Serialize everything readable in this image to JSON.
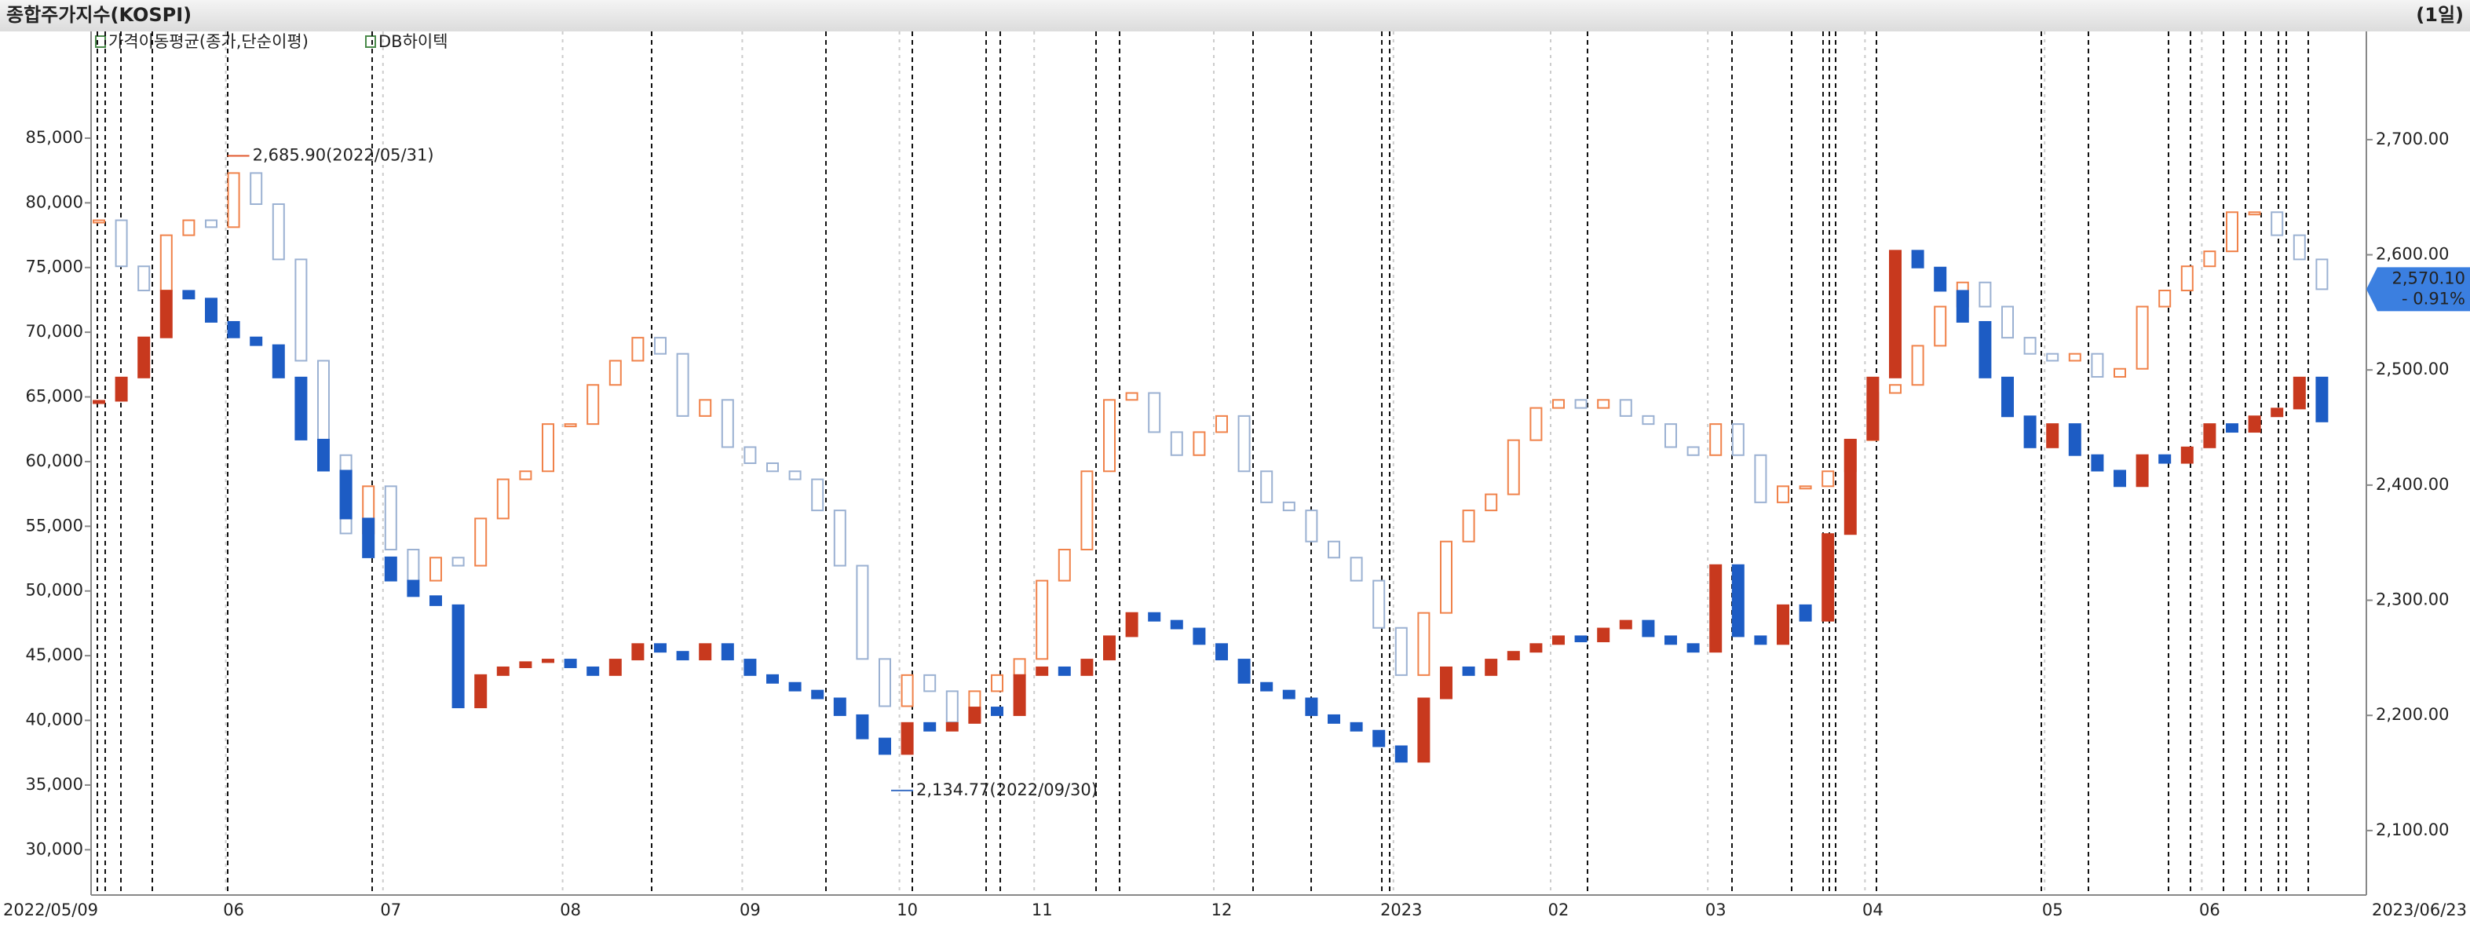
{
  "header": {
    "title": "종합주가지수(KOSPI)",
    "period": "(1일)"
  },
  "chart_data": {
    "type": "candlestick",
    "indicator_label": "가격이동평균(종가,단순이평)",
    "categories": [
      "2022/05/09",
      null,
      null,
      null,
      null,
      null,
      "06",
      null,
      null,
      null,
      null,
      null,
      null,
      "07",
      null,
      null,
      null,
      null,
      null,
      null,
      null,
      "08",
      null,
      null,
      null,
      null,
      null,
      null,
      null,
      "09",
      null,
      null,
      null,
      null,
      null,
      null,
      "10",
      null,
      null,
      null,
      null,
      null,
      "11",
      null,
      null,
      null,
      null,
      null,
      null,
      null,
      "12",
      null,
      null,
      null,
      null,
      null,
      null,
      null,
      "2023",
      null,
      null,
      null,
      null,
      null,
      null,
      "02",
      null,
      null,
      null,
      null,
      null,
      null,
      "03",
      null,
      null,
      null,
      null,
      null,
      null,
      "04",
      null,
      null,
      null,
      null,
      null,
      null,
      null,
      "05",
      null,
      null,
      null,
      null,
      null,
      null,
      "06",
      null,
      null,
      null,
      null,
      "2023/06/23"
    ],
    "series": [
      {
        "axis": "y2",
        "color_up": "#f0824a",
        "color_down": "#9bb1d2",
        "filled": false,
        "values": [
          2630,
          2590,
          2569,
          2617,
          2630,
          2624,
          2671,
          2644,
          2596,
          2508,
          2426,
          2358,
          2399,
          2344,
          2317,
          2337,
          2330,
          2371,
          2405,
          2412,
          2453,
          2453,
          2487,
          2508,
          2528,
          2514,
          2460,
          2474,
          2433,
          2419,
          2412,
          2405,
          2378,
          2330,
          2249,
          2208,
          2235,
          2221,
          2194,
          2221,
          2235,
          2249,
          2317,
          2344,
          2412,
          2474,
          2480,
          2446,
          2426,
          2446,
          2460,
          2412,
          2385,
          2378,
          2351,
          2337,
          2317,
          2276,
          2235,
          2289,
          2351,
          2378,
          2392,
          2439,
          2467,
          2474,
          2467,
          2474,
          2460,
          2453,
          2433,
          2426,
          2453,
          2426,
          2385,
          2399,
          2399,
          2412,
          2439,
          2480,
          2487,
          2521,
          2555,
          2576,
          2555,
          2528,
          2514,
          2508,
          2514,
          2494,
          2501,
          2555,
          2569,
          2590,
          2603,
          2637,
          2637,
          2617,
          2596,
          2570.1
        ]
      },
      {
        "name": "DB하이텍",
        "axis": "y",
        "color_up": "#c8391e",
        "color_down": "#1d5cc4",
        "filled": true,
        "values": [
          64700,
          66500,
          69600,
          73200,
          72600,
          70800,
          69600,
          69000,
          66500,
          61700,
          59300,
          55600,
          52600,
          50800,
          49600,
          48900,
          41000,
          43500,
          44100,
          44500,
          44700,
          44100,
          43500,
          44700,
          45900,
          45300,
          44700,
          45900,
          44700,
          43500,
          42900,
          42300,
          41700,
          40400,
          38600,
          37400,
          39800,
          39200,
          39800,
          41000,
          40400,
          43500,
          44100,
          43500,
          44700,
          46500,
          48300,
          47700,
          47100,
          45900,
          44700,
          42900,
          42300,
          41700,
          40400,
          39800,
          39200,
          38000,
          36800,
          41700,
          44100,
          43500,
          44700,
          45300,
          45900,
          46500,
          46100,
          47100,
          47700,
          46500,
          45900,
          45300,
          52000,
          46500,
          45900,
          48900,
          47700,
          54400,
          61700,
          66500,
          76300,
          75000,
          73200,
          70800,
          66500,
          63500,
          61100,
          62900,
          60500,
          59300,
          58100,
          60500,
          59900,
          61100,
          62900,
          62300,
          63500,
          64100,
          66500,
          63100
        ]
      }
    ],
    "ylim": [
      26500,
      93250
    ],
    "yticks": [
      {
        "value": 30000,
        "label": "30,000"
      },
      {
        "value": 35000,
        "label": "35,000"
      },
      {
        "value": 40000,
        "label": "40,000"
      },
      {
        "value": 45000,
        "label": "45,000"
      },
      {
        "value": 50000,
        "label": "50,000"
      },
      {
        "value": 55000,
        "label": "55,000"
      },
      {
        "value": 60000,
        "label": "60,000"
      },
      {
        "value": 65000,
        "label": "65,000"
      },
      {
        "value": 70000,
        "label": "70,000"
      },
      {
        "value": 75000,
        "label": "75,000"
      },
      {
        "value": 80000,
        "label": "80,000"
      },
      {
        "value": 85000,
        "label": "85,000"
      }
    ],
    "y2lim": [
      2044,
      2794
    ],
    "y2ticks": [
      {
        "value": 2100,
        "label": "2,100.00"
      },
      {
        "value": 2200,
        "label": "2,200.00"
      },
      {
        "value": 2300,
        "label": "2,300.00"
      },
      {
        "value": 2400,
        "label": "2,400.00"
      },
      {
        "value": 2500,
        "label": "2,500.00"
      },
      {
        "value": 2600,
        "label": "2,600.00"
      },
      {
        "value": 2700,
        "label": "2,700.00"
      }
    ],
    "annotations": [
      {
        "label": "2,685.90(2022/05/31)",
        "value": 2685.9,
        "color": "#e0562a"
      },
      {
        "label": "2,134.77(2022/09/30)",
        "value": 2134.77,
        "color": "#3a6fc4"
      }
    ],
    "last_value": {
      "value": 2570.1,
      "label": "2,570.10",
      "change": "- 0.91%",
      "color": "#3b7fe0"
    }
  }
}
